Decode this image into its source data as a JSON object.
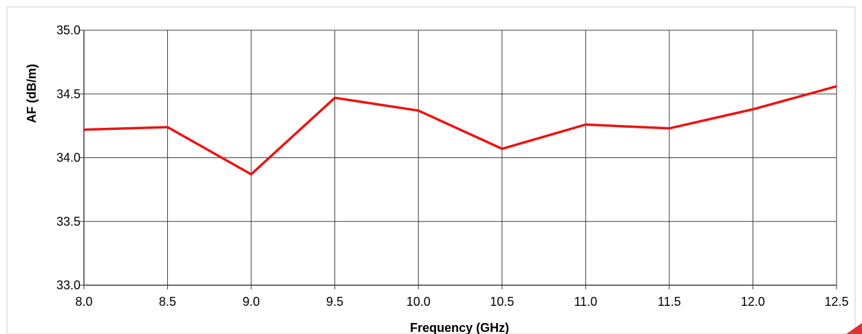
{
  "chart_data": {
    "type": "line",
    "title": "",
    "xlabel": "Frequency (GHz)",
    "ylabel": "AF (dB/m)",
    "xlim": [
      8.0,
      12.5
    ],
    "ylim": [
      33.0,
      35.0
    ],
    "x_ticks": [
      "8.0",
      "8.5",
      "9.0",
      "9.5",
      "10.0",
      "10.5",
      "11.0",
      "11.5",
      "12.0",
      "12.5"
    ],
    "y_ticks": [
      "33.0",
      "33.5",
      "34.0",
      "34.5",
      "35.0"
    ],
    "x_tick_values": [
      8.0,
      8.5,
      9.0,
      9.5,
      10.0,
      10.5,
      11.0,
      11.5,
      12.0,
      12.5
    ],
    "y_tick_values": [
      33.0,
      33.5,
      34.0,
      34.5,
      35.0
    ],
    "grid": true,
    "legend": "none",
    "series": [
      {
        "color": "#ee1111",
        "x": [
          8.0,
          8.5,
          9.0,
          9.5,
          10.0,
          10.5,
          11.0,
          11.5,
          12.0,
          12.5
        ],
        "values": [
          34.22,
          34.24,
          33.87,
          34.47,
          34.37,
          34.07,
          34.26,
          34.23,
          34.38,
          34.56
        ]
      }
    ],
    "colors": {
      "series": "#ee1111",
      "grid": "#3a3a3a",
      "axes": "#3a3a3a",
      "text": "#000000",
      "frame": "#e6e6e6",
      "corner_accent": "#dd3333"
    }
  }
}
